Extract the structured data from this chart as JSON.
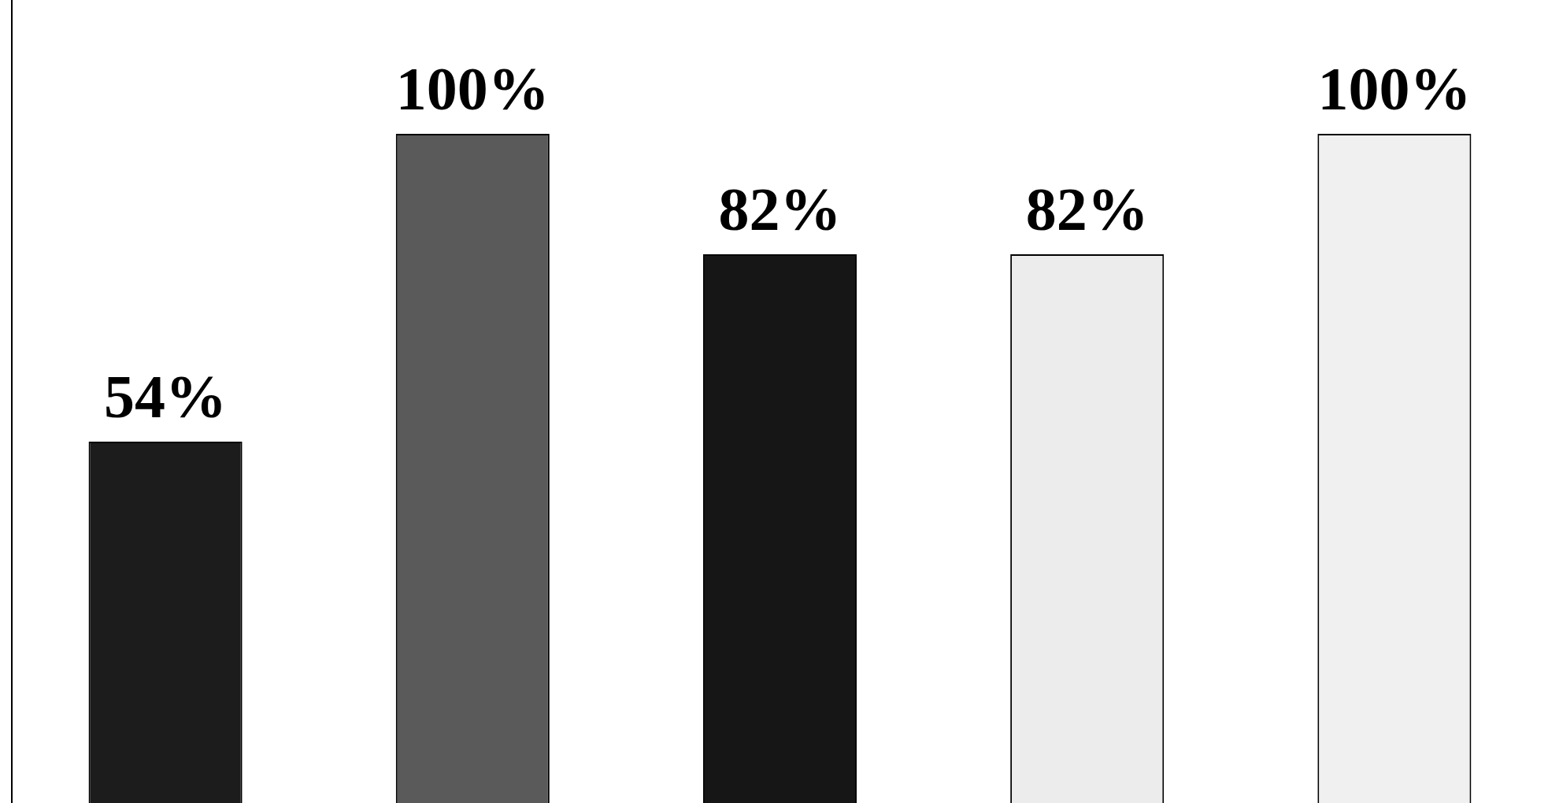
{
  "chart_data": {
    "type": "bar",
    "categories": [
      null,
      null,
      null,
      null,
      null
    ],
    "values": [
      54,
      100,
      82,
      82,
      100
    ],
    "colors": [
      "#1c1c1c",
      "#5a5a5a",
      "#161616",
      "#ececec",
      "#f0f0f0"
    ],
    "data_labels": true,
    "value_labels": [
      "54%",
      "100%",
      "82%",
      "82%",
      "100%"
    ],
    "tick_labels": false,
    "grid": false,
    "legend": false
  }
}
